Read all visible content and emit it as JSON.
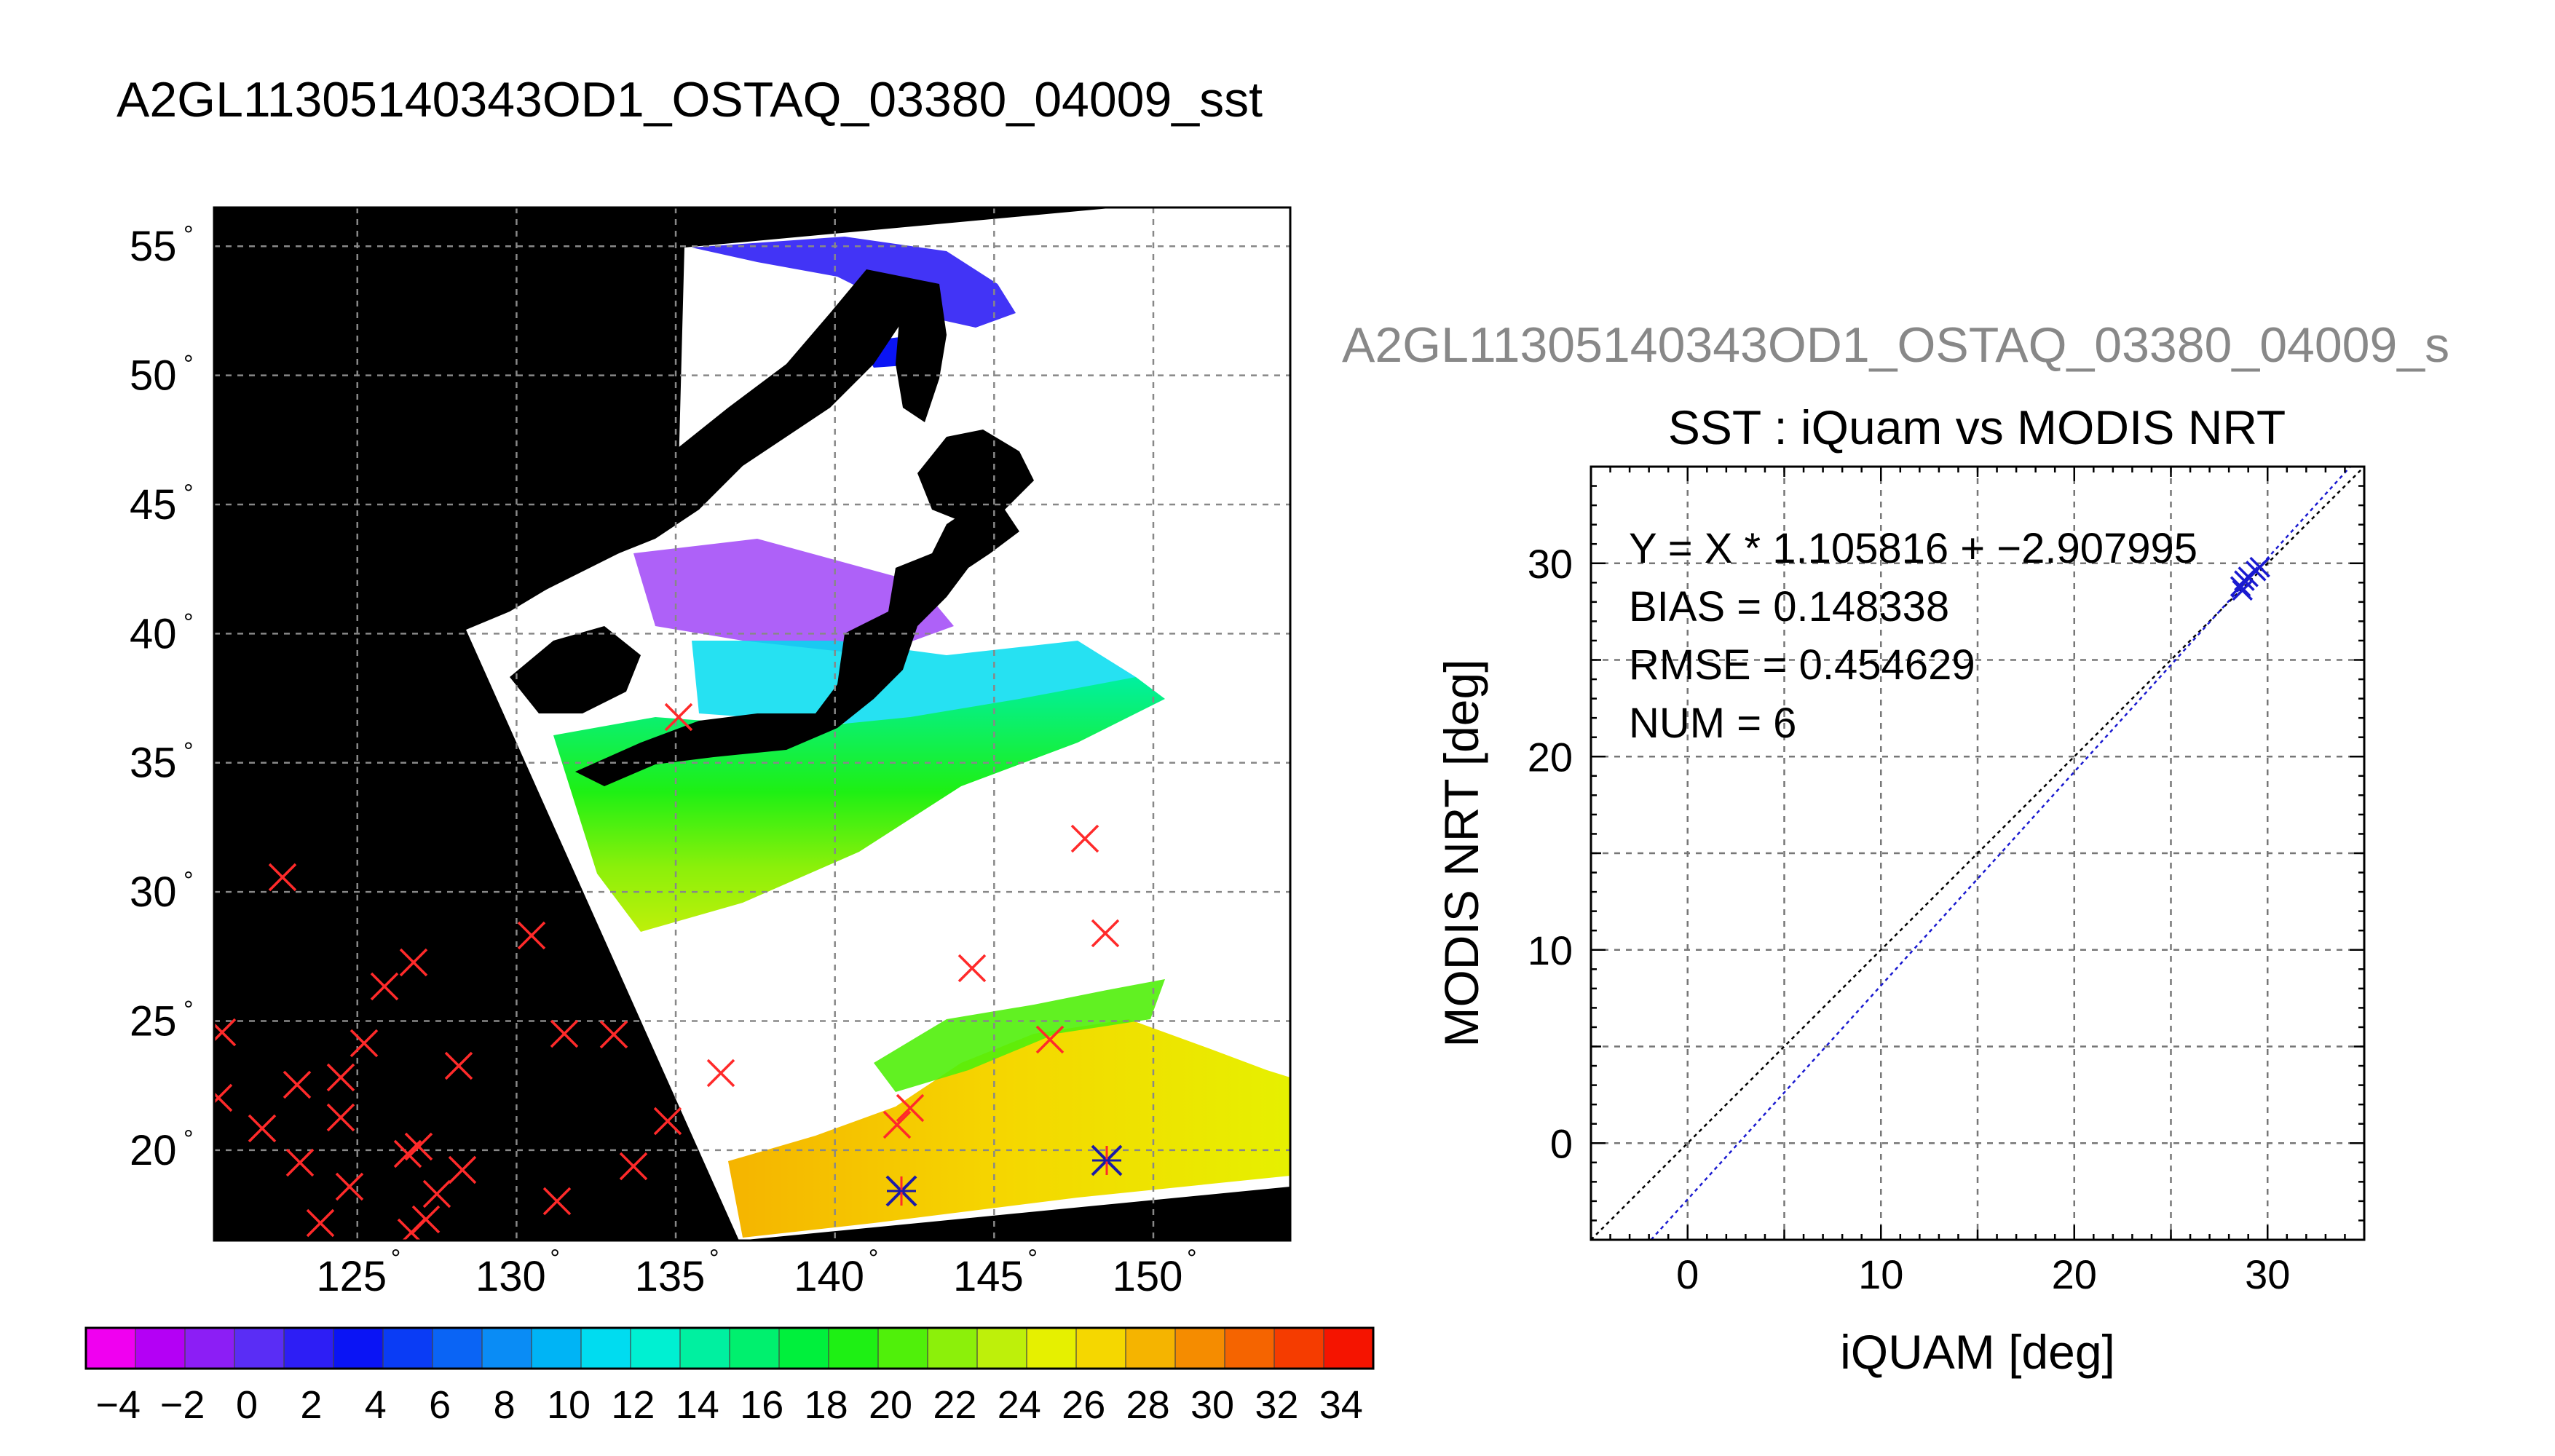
{
  "figure": {
    "title": "A2GL11305140343OD1_OSTAQ_03380_04009_sst",
    "subtitle": "A2GL11305140343OD1_OSTAQ_03380_04009_s"
  },
  "map": {
    "lat_labels": [
      "55",
      "50",
      "45",
      "40",
      "35",
      "30",
      "25",
      "20"
    ],
    "lon_labels": [
      "125",
      "130",
      "135",
      "140",
      "145",
      "150"
    ],
    "lon_range": [
      120.5,
      154.3
    ],
    "lat_range": [
      16.5,
      56.5
    ],
    "colors": {
      "land": "#000000",
      "no_data": "#ffffff",
      "station_marker": "#ff2a2a",
      "matched_marker": "#1a1aa8"
    }
  },
  "colorbar": {
    "labels": [
      "−4",
      "−2",
      "0",
      "2",
      "4",
      "6",
      "8",
      "10",
      "12",
      "14",
      "16",
      "18",
      "20",
      "22",
      "24",
      "26",
      "28",
      "30",
      "32",
      "34"
    ],
    "range": [
      -5,
      35
    ],
    "colors": [
      "#f000f0",
      "#b400f5",
      "#8c1ef5",
      "#5a2df5",
      "#2d1ef5",
      "#0a14f5",
      "#0a3cf5",
      "#0a64f5",
      "#0a8cf5",
      "#00b4f5",
      "#00dcf0",
      "#00f0d2",
      "#00f0a0",
      "#00f06e",
      "#00f03c",
      "#1ef014",
      "#50f00a",
      "#8cf00a",
      "#bef00a",
      "#e6f000",
      "#f5d700",
      "#f5b400",
      "#f58c00",
      "#f56400",
      "#f53c00",
      "#f51400"
    ]
  },
  "chart_data": {
    "type": "scatter",
    "title": "SST : iQuam vs MODIS NRT",
    "xlabel": "iQUAM [deg]",
    "ylabel": "MODIS NRT [deg]",
    "xlim": [
      -5,
      35
    ],
    "ylim": [
      -5,
      35
    ],
    "x_ticks": [
      "0",
      "10",
      "20",
      "30"
    ],
    "y_ticks": [
      "0",
      "10",
      "20",
      "30"
    ],
    "grid": true,
    "annotations": [
      "Y = X * 1.105816 + −2.907995",
      "BIAS = 0.148338",
      "RMSE = 0.454629",
      "NUM = 6"
    ],
    "regression": {
      "slope": 1.105816,
      "intercept": -2.907995
    },
    "points": [
      {
        "x": 28.6,
        "y": 28.8
      },
      {
        "x": 28.8,
        "y": 29.1
      },
      {
        "x": 29.0,
        "y": 29.3
      },
      {
        "x": 29.4,
        "y": 29.6
      },
      {
        "x": 29.6,
        "y": 29.8
      },
      {
        "x": 28.7,
        "y": 28.6
      }
    ]
  }
}
